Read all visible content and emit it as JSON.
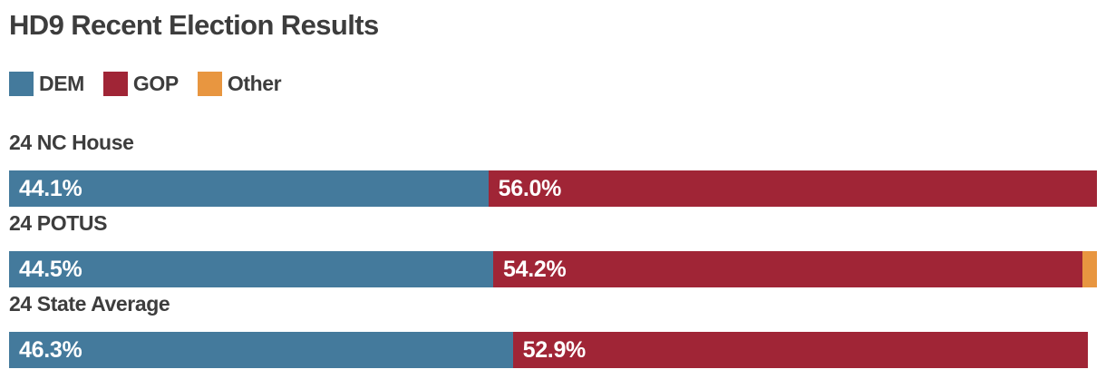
{
  "title": "HD9 Recent Election Results",
  "colors": {
    "dem": "#447a9c",
    "gop": "#a02536",
    "other": "#e89640",
    "heading_text": "#3d3d3d",
    "bar_label_text": "#ffffff",
    "background": "#ffffff"
  },
  "legend": [
    {
      "key": "dem",
      "label": "DEM"
    },
    {
      "key": "gop",
      "label": "GOP"
    },
    {
      "key": "other",
      "label": "Other"
    }
  ],
  "chart_data": {
    "type": "bar",
    "orientation": "horizontal",
    "stacked": true,
    "unit": "percent",
    "xlim": [
      0,
      100
    ],
    "grid": false,
    "legend_position": "top",
    "title": "HD9 Recent Election Results",
    "categories": [
      "24 NC House",
      "24 POTUS",
      "24 State Average"
    ],
    "series": [
      {
        "name": "DEM",
        "key": "dem",
        "values": [
          44.1,
          44.5,
          46.3
        ]
      },
      {
        "name": "GOP",
        "key": "gop",
        "values": [
          56.0,
          54.2,
          52.9
        ]
      },
      {
        "name": "Other",
        "key": "other",
        "values": [
          0,
          1.3,
          0
        ]
      }
    ],
    "bar_labels": [
      [
        "44.1%",
        "56.0%",
        ""
      ],
      [
        "44.5%",
        "54.2%",
        ""
      ],
      [
        "46.3%",
        "52.9%",
        ""
      ]
    ]
  }
}
